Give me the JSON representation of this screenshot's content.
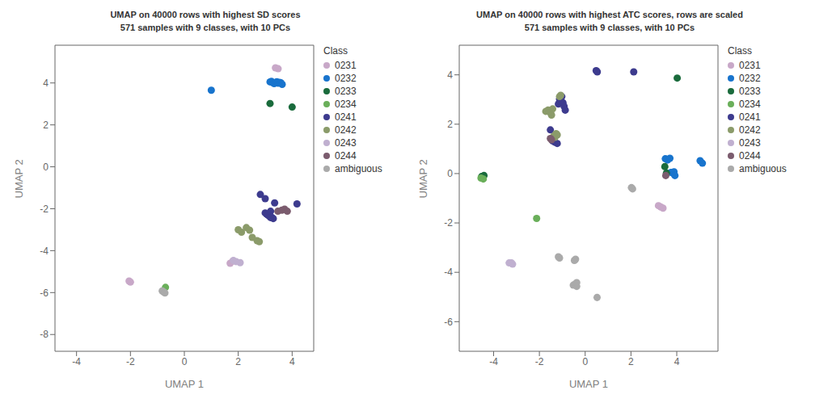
{
  "chart_data": [
    {
      "type": "scatter",
      "title": "UMAP on 40000 rows with highest SD scores\n571 samples with 9 classes, with 10 PCs",
      "xlabel": "UMAP 1",
      "ylabel": "UMAP 2",
      "xlim": [
        -4.8,
        4.8
      ],
      "ylim": [
        -8.8,
        5.8
      ],
      "xticks": [
        -4,
        -2,
        0,
        2,
        4
      ],
      "yticks": [
        -8,
        -6,
        -4,
        -2,
        0,
        2,
        4
      ],
      "grid": false,
      "legend": "right",
      "legend_title": "Class",
      "series": [
        {
          "name": "0231",
          "color": "#C8A8C8",
          "values": [
            [
              -2.0,
              -5.5
            ],
            [
              -2.05,
              -5.45
            ],
            [
              1.7,
              -4.6
            ],
            [
              1.8,
              -4.5
            ],
            [
              3.38,
              4.72
            ],
            [
              3.48,
              4.68
            ]
          ]
        },
        {
          "name": "0232",
          "color": "#1874CD",
          "values": [
            [
              1.0,
              3.65
            ],
            [
              3.18,
              4.05
            ],
            [
              3.23,
              4.08
            ],
            [
              3.28,
              4.02
            ],
            [
              3.33,
              3.97
            ],
            [
              3.38,
              4.0
            ],
            [
              3.43,
              4.06
            ],
            [
              3.48,
              3.99
            ],
            [
              3.53,
              4.03
            ],
            [
              3.58,
              4.01
            ],
            [
              3.63,
              3.93
            ]
          ]
        },
        {
          "name": "0233",
          "color": "#1A6B3C",
          "values": [
            [
              3.18,
              3.02
            ],
            [
              4.0,
              2.85
            ]
          ]
        },
        {
          "name": "0234",
          "color": "#6AAF5A",
          "values": [
            [
              -0.7,
              -5.75
            ]
          ]
        },
        {
          "name": "0241",
          "color": "#3D3B8E",
          "values": [
            [
              2.82,
              -1.32
            ],
            [
              3.0,
              -1.52
            ],
            [
              3.0,
              -2.2
            ],
            [
              3.05,
              -2.25
            ],
            [
              3.1,
              -2.3
            ],
            [
              3.15,
              -2.35
            ],
            [
              3.2,
              -2.12
            ],
            [
              3.2,
              -2.42
            ],
            [
              3.25,
              -2.42
            ],
            [
              3.3,
              -2.47
            ],
            [
              3.35,
              -1.72
            ],
            [
              4.18,
              -1.77
            ]
          ]
        },
        {
          "name": "0242",
          "color": "#8B9B6A",
          "values": [
            [
              2.0,
              -3.0
            ],
            [
              2.12,
              -3.12
            ],
            [
              2.3,
              -2.9
            ],
            [
              2.42,
              -3.02
            ],
            [
              2.52,
              -3.37
            ],
            [
              2.7,
              -3.52
            ],
            [
              2.78,
              -3.57
            ]
          ]
        },
        {
          "name": "0243",
          "color": "#C0B0D0",
          "values": [
            [
              1.82,
              -4.47
            ],
            [
              1.92,
              -4.52
            ],
            [
              2.07,
              -4.57
            ]
          ]
        },
        {
          "name": "0244",
          "color": "#7B5C6E",
          "values": [
            [
              3.47,
              -2.12
            ],
            [
              3.62,
              -2.07
            ],
            [
              3.72,
              -2.02
            ],
            [
              3.82,
              -2.12
            ]
          ]
        },
        {
          "name": "ambiguous",
          "color": "#AAAAAA",
          "values": [
            [
              -0.82,
              -5.92
            ],
            [
              -0.77,
              -5.97
            ],
            [
              -0.72,
              -6.02
            ]
          ]
        }
      ]
    },
    {
      "type": "scatter",
      "title": "UMAP on 40000 rows with highest ATC scores, rows are scaled\n571 samples with 9 classes, with 10 PCs",
      "xlabel": "UMAP 1",
      "ylabel": "UMAP 2",
      "xlim": [
        -5.5,
        5.8
      ],
      "ylim": [
        -7.2,
        5.2
      ],
      "xticks": [
        -4,
        -2,
        0,
        2,
        4
      ],
      "yticks": [
        -6,
        -4,
        -2,
        0,
        2,
        4
      ],
      "grid": false,
      "legend": "right",
      "legend_title": "Class",
      "series": [
        {
          "name": "0231",
          "color": "#C8A8C8",
          "values": [
            [
              3.2,
              -1.3
            ],
            [
              3.3,
              -1.35
            ],
            [
              3.4,
              -1.4
            ]
          ]
        },
        {
          "name": "0232",
          "color": "#1874CD",
          "values": [
            [
              3.5,
              0.6
            ],
            [
              3.6,
              0.55
            ],
            [
              3.7,
              0.62
            ],
            [
              3.75,
              0.05
            ],
            [
              3.82,
              0.02
            ],
            [
              3.88,
              0.07
            ],
            [
              3.92,
              -0.08
            ],
            [
              5.02,
              0.52
            ],
            [
              5.12,
              0.42
            ]
          ]
        },
        {
          "name": "0233",
          "color": "#1A6B3C",
          "values": [
            [
              -4.52,
              -0.12
            ],
            [
              -4.42,
              -0.08
            ],
            [
              3.48,
              0.28
            ],
            [
              3.55,
              0.02
            ],
            [
              4.02,
              3.87
            ]
          ]
        },
        {
          "name": "0234",
          "color": "#6AAF5A",
          "values": [
            [
              -4.55,
              -0.18
            ],
            [
              -4.45,
              -0.22
            ],
            [
              -2.12,
              -1.82
            ]
          ]
        },
        {
          "name": "0241",
          "color": "#3D3B8E",
          "values": [
            [
              -1.52,
              1.77
            ],
            [
              -1.42,
              1.32
            ],
            [
              -1.32,
              1.27
            ],
            [
              -1.22,
              1.22
            ],
            [
              -1.17,
              2.82
            ],
            [
              -1.12,
              3.02
            ],
            [
              -1.07,
              2.92
            ],
            [
              -1.02,
              3.12
            ],
            [
              -0.97,
              2.87
            ],
            [
              -0.92,
              2.72
            ],
            [
              -0.87,
              2.57
            ],
            [
              0.48,
              4.17
            ],
            [
              0.53,
              4.12
            ],
            [
              2.12,
              4.12
            ]
          ]
        },
        {
          "name": "0242",
          "color": "#8B9B6A",
          "values": [
            [
              -1.72,
              2.52
            ],
            [
              -1.62,
              2.57
            ],
            [
              -1.52,
              2.47
            ],
            [
              -1.42,
              2.62
            ],
            [
              -1.37,
              1.52
            ],
            [
              -1.32,
              1.47
            ],
            [
              -1.27,
              1.62
            ],
            [
              -1.22,
              1.57
            ],
            [
              -1.12,
              3.12
            ],
            [
              -1.07,
              3.17
            ],
            [
              -1.47,
              2.37
            ]
          ]
        },
        {
          "name": "0243",
          "color": "#C0B0D0",
          "values": [
            [
              -3.32,
              -3.62
            ],
            [
              -3.22,
              -3.62
            ],
            [
              -3.17,
              -3.67
            ]
          ]
        },
        {
          "name": "0244",
          "color": "#7B5C6E",
          "values": [
            [
              -1.52,
              1.42
            ],
            [
              -1.47,
              1.37
            ],
            [
              3.52,
              -0.08
            ]
          ]
        },
        {
          "name": "ambiguous",
          "color": "#AAAAAA",
          "values": [
            [
              2.02,
              -0.57
            ],
            [
              2.07,
              -0.62
            ],
            [
              -1.12,
              -3.42
            ],
            [
              -1.17,
              -3.37
            ],
            [
              -0.52,
              -4.52
            ],
            [
              -0.42,
              -4.47
            ],
            [
              -0.37,
              -4.57
            ],
            [
              -0.37,
              -4.42
            ],
            [
              -0.42,
              -3.47
            ],
            [
              -0.47,
              -3.52
            ],
            [
              0.52,
              -5.02
            ]
          ]
        }
      ]
    }
  ]
}
